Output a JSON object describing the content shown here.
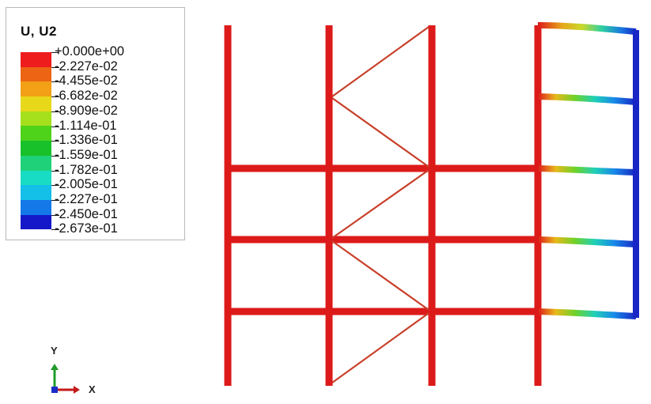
{
  "legend": {
    "title": "U, U2",
    "entries": [
      {
        "label": "+0.000e+00",
        "color": "#ee1c1c"
      },
      {
        "label": "-2.227e-02",
        "color": "#ec6414"
      },
      {
        "label": "-4.455e-02",
        "color": "#f2a015"
      },
      {
        "label": "-6.682e-02",
        "color": "#e8d81a"
      },
      {
        "label": "-8.909e-02",
        "color": "#a6e01c"
      },
      {
        "label": "-1.114e-01",
        "color": "#4fd21a"
      },
      {
        "label": "-1.336e-01",
        "color": "#18c12a"
      },
      {
        "label": "-1.559e-01",
        "color": "#1fd27a"
      },
      {
        "label": "-1.782e-01",
        "color": "#18dcc3"
      },
      {
        "label": "-2.005e-01",
        "color": "#14bfe8"
      },
      {
        "label": "-2.227e-01",
        "color": "#1478e8"
      },
      {
        "label": "-2.450e-01",
        "color": "#143ae0"
      },
      {
        "label": "-2.673e-01",
        "color": ""
      }
    ],
    "bottom_color": "#1418c8"
  },
  "triad": {
    "y_label": "Y",
    "x_label": "X",
    "y_color": "#1f9c2b",
    "x_color": "#c41a1a",
    "z_color": "#1a2cc8"
  },
  "frame": {
    "member_color": "#dd1a1a",
    "displaced_color": "#1726c4"
  }
}
